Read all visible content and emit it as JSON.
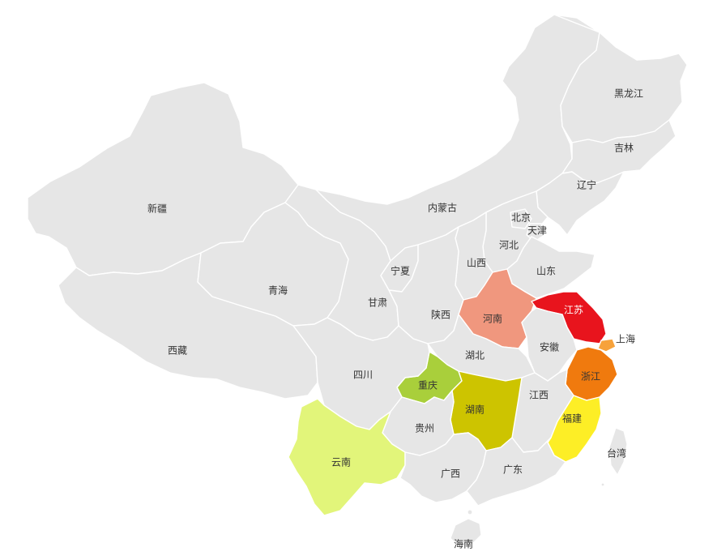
{
  "colors": {
    "default": "#e6e6e6",
    "border": "#ffffff",
    "label": "#333333"
  },
  "provinces": {
    "heilongjiang": {
      "label": "黑龙江",
      "color": "#e6e6e6"
    },
    "jilin": {
      "label": "吉林",
      "color": "#e6e6e6"
    },
    "liaoning": {
      "label": "辽宁",
      "color": "#e6e6e6"
    },
    "beijing": {
      "label": "北京",
      "color": "#e6e6e6"
    },
    "tianjin": {
      "label": "天津",
      "color": "#e6e6e6"
    },
    "hebei": {
      "label": "河北",
      "color": "#e6e6e6"
    },
    "shanxi": {
      "label": "山西",
      "color": "#e6e6e6"
    },
    "neimenggu": {
      "label": "内蒙古",
      "color": "#e6e6e6"
    },
    "xinjiang": {
      "label": "新疆",
      "color": "#e6e6e6"
    },
    "xizang": {
      "label": "西藏",
      "color": "#e6e6e6"
    },
    "qinghai": {
      "label": "青海",
      "color": "#e6e6e6"
    },
    "gansu": {
      "label": "甘肃",
      "color": "#e6e6e6"
    },
    "ningxia": {
      "label": "宁夏",
      "color": "#e6e6e6"
    },
    "shaanxi": {
      "label": "陕西",
      "color": "#e6e6e6"
    },
    "shandong": {
      "label": "山东",
      "color": "#e6e6e6"
    },
    "henan": {
      "label": "河南",
      "color": "#f0977e"
    },
    "jiangsu": {
      "label": "江苏",
      "color": "#e8141d"
    },
    "shanghai": {
      "label": "上海",
      "color": "#f7a23b"
    },
    "anhui": {
      "label": "安徽",
      "color": "#e6e6e6"
    },
    "hubei": {
      "label": "湖北",
      "color": "#e6e6e6"
    },
    "zhejiang": {
      "label": "浙江",
      "color": "#f07a0e"
    },
    "jiangxi": {
      "label": "江西",
      "color": "#e6e6e6"
    },
    "hunan": {
      "label": "湖南",
      "color": "#cdc400"
    },
    "chongqing": {
      "label": "重庆",
      "color": "#a9cf3b"
    },
    "sichuan": {
      "label": "四川",
      "color": "#e6e6e6"
    },
    "guizhou": {
      "label": "贵州",
      "color": "#e6e6e6"
    },
    "yunnan": {
      "label": "云南",
      "color": "#e2f57a"
    },
    "guangxi": {
      "label": "广西",
      "color": "#e6e6e6"
    },
    "guangdong": {
      "label": "广东",
      "color": "#e6e6e6"
    },
    "fujian": {
      "label": "福建",
      "color": "#fdee26"
    },
    "taiwan": {
      "label": "台湾",
      "color": "#e6e6e6"
    },
    "hainan": {
      "label": "海南",
      "color": "#e6e6e6"
    }
  }
}
